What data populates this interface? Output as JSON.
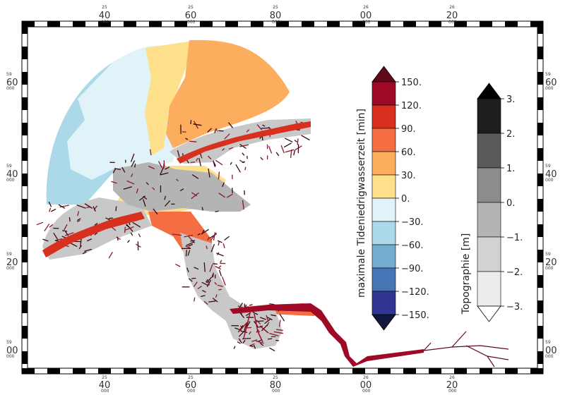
{
  "map": {
    "top_ticks": [
      {
        "deg": "25",
        "min": "40",
        "sec": "000"
      },
      {
        "deg": "25",
        "min": "60",
        "sec": "000"
      },
      {
        "deg": "25",
        "min": "80",
        "sec": "000"
      },
      {
        "deg": "26",
        "min": "00",
        "sec": "000"
      },
      {
        "deg": "26",
        "min": "20",
        "sec": "000"
      }
    ],
    "bottom_ticks": [
      {
        "deg": "25",
        "min": "40",
        "sec": "000"
      },
      {
        "deg": "25",
        "min": "60",
        "sec": "000"
      },
      {
        "deg": "25",
        "min": "80",
        "sec": "000"
      },
      {
        "deg": "26",
        "min": "00",
        "sec": "000"
      },
      {
        "deg": "26",
        "min": "20",
        "sec": "000"
      }
    ],
    "left_ticks": [
      {
        "deg": "59",
        "min": "60",
        "sec": "000"
      },
      {
        "deg": "59",
        "min": "40",
        "sec": "000"
      },
      {
        "deg": "59",
        "min": "20",
        "sec": "000"
      },
      {
        "deg": "59",
        "min": "00",
        "sec": "000"
      }
    ],
    "right_ticks": [
      {
        "deg": "59",
        "min": "60",
        "sec": "000"
      },
      {
        "deg": "59",
        "min": "40",
        "sec": "000"
      },
      {
        "deg": "59",
        "min": "20",
        "sec": "000"
      },
      {
        "deg": "59",
        "min": "00",
        "sec": "000"
      }
    ]
  },
  "colorbar_time": {
    "title": "maximale Tideniedrigwasserzeit [min]",
    "labels": [
      "150.",
      "120.",
      "90.",
      "60.",
      "30.",
      "0.",
      "−30.",
      "−60.",
      "−90.",
      "−120.",
      "−150."
    ],
    "colors_top_to_bottom": [
      "#9e0a26",
      "#d7301f",
      "#f46d43",
      "#fcad5e",
      "#fee08b",
      "#e0f3f8",
      "#abd9e9",
      "#74add1",
      "#4575b4",
      "#313695"
    ],
    "over_color": "#5e0a1a",
    "under_color": "#10163f"
  },
  "colorbar_topo": {
    "title": "Topographie [m]",
    "labels": [
      "3.",
      "2.",
      "1.",
      "0.",
      "−1.",
      "−2.",
      "−3."
    ],
    "colors_top_to_bottom": [
      "#1e1e1e",
      "#5a5a5a",
      "#8c8c8c",
      "#b4b4b4",
      "#d2d2d2",
      "#ececec"
    ],
    "over_color": "#000000",
    "under_color": "#ffffff"
  }
}
